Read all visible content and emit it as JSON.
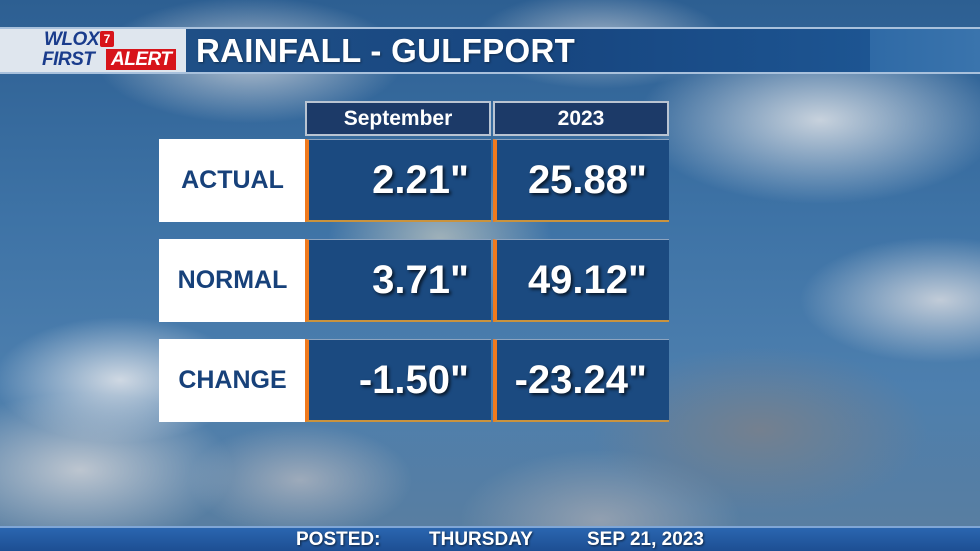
{
  "logo": {
    "line1": "WLOX",
    "channel": "7",
    "line2a": "FIRST",
    "line2b": "ALERT"
  },
  "title": "RAINFALL - GULFPORT",
  "table": {
    "columns": [
      "September",
      "2023"
    ],
    "rows": [
      {
        "label": "ACTUAL",
        "values": [
          "2.21\"",
          "25.88\""
        ]
      },
      {
        "label": "NORMAL",
        "values": [
          "3.71\"",
          "49.12\""
        ]
      },
      {
        "label": "CHANGE",
        "values": [
          "-1.50\"",
          "-23.24\""
        ]
      }
    ]
  },
  "footer": {
    "posted_label": "POSTED:",
    "day": "THURSDAY",
    "date": "SEP 21, 2023"
  },
  "colors": {
    "accent_orange": "#f07a1e",
    "cell_blue": "#1b4a80",
    "label_blue": "#17417a",
    "logo_red": "#d7141a"
  }
}
